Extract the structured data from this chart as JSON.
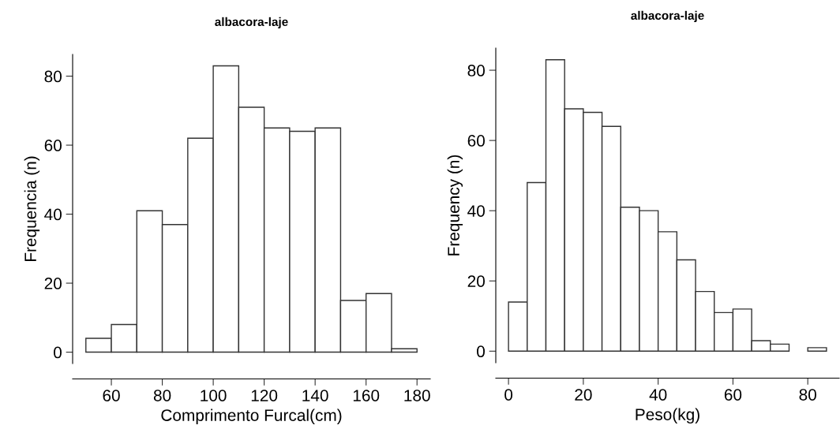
{
  "chart_data": [
    {
      "type": "histogram",
      "title": "albacora-laje",
      "xlabel": "Comprimento Furcal(cm)",
      "ylabel": "Frequencia (n)",
      "color": "#ffffff",
      "bins": [
        50,
        60,
        70,
        80,
        90,
        100,
        110,
        120,
        130,
        140,
        150,
        160,
        170,
        180
      ],
      "values": [
        4,
        8,
        41,
        37,
        62,
        83,
        71,
        65,
        64,
        65,
        15,
        17,
        1
      ],
      "xlim": [
        44.8,
        185.2
      ],
      "ylim": [
        -3.3,
        86.3
      ],
      "xticks": [
        60,
        80,
        100,
        120,
        140,
        160,
        180
      ],
      "yticks": [
        0,
        20,
        40,
        60,
        80
      ],
      "grid": false
    },
    {
      "type": "histogram",
      "title": "albacora-laje",
      "xlabel": "Peso(kg)",
      "ylabel": "Frequency (n)",
      "color": "#ffffff",
      "bins": [
        0,
        5,
        10,
        15,
        20,
        25,
        30,
        35,
        40,
        45,
        50,
        55,
        60,
        65,
        70,
        75,
        80,
        85
      ],
      "values": [
        14,
        48,
        83,
        69,
        68,
        64,
        41,
        40,
        34,
        26,
        17,
        11,
        12,
        3,
        2,
        0,
        1
      ],
      "xlim": [
        -3.4,
        88.4
      ],
      "ylim": [
        -3.3,
        86.3
      ],
      "xticks": [
        0,
        20,
        40,
        60,
        80
      ],
      "yticks": [
        0,
        20,
        40,
        60,
        80
      ],
      "grid": false
    }
  ]
}
